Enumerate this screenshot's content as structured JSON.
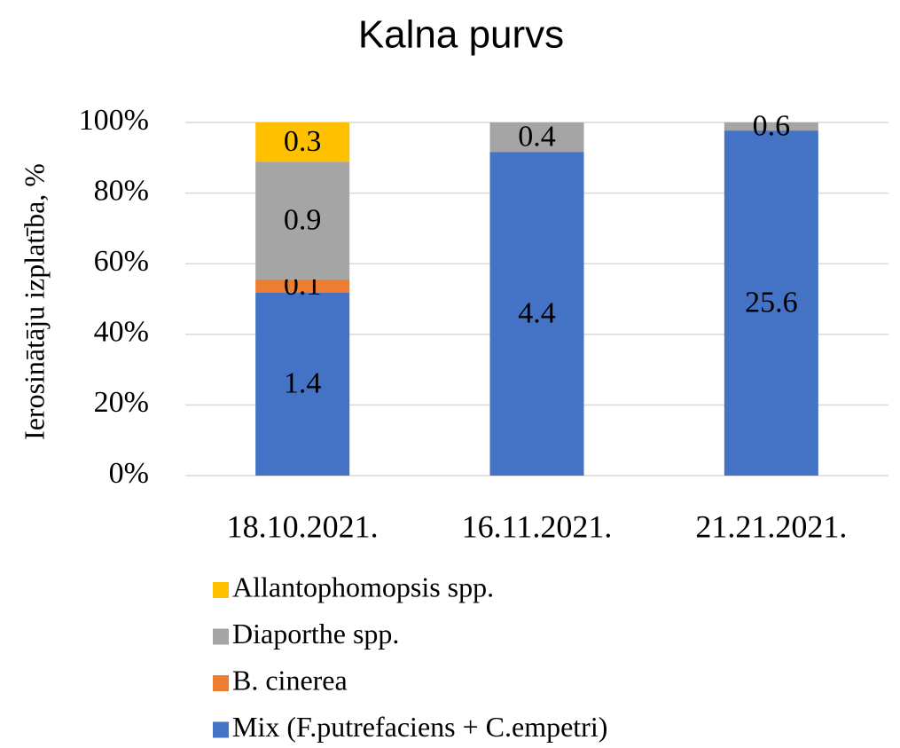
{
  "chart_data": {
    "type": "bar",
    "stacked_percent": true,
    "title": "Kalna purvs",
    "y_label": "Ierosinātāju izplatība, %",
    "categories": [
      "18.10.2021.",
      "16.11.2021.",
      "21.21.2021."
    ],
    "series": [
      {
        "name": "Mix (F.putrefaciens + C.empetri)",
        "color": "#4472c4",
        "values": [
          1.4,
          4.4,
          25.6
        ]
      },
      {
        "name": "B. cinerea",
        "color": "#ed7d31",
        "values": [
          0.1,
          null,
          null
        ]
      },
      {
        "name": "Diaporthe spp.",
        "color": "#a5a5a5",
        "values": [
          0.9,
          0.4,
          0.6
        ]
      },
      {
        "name": "Allantophomopsis spp.",
        "color": "#ffc000",
        "values": [
          0.3,
          null,
          null
        ]
      }
    ],
    "ylim": [
      0,
      100
    ],
    "yticks": [
      {
        "value": 0,
        "label": "0%"
      },
      {
        "value": 20,
        "label": "20%"
      },
      {
        "value": 40,
        "label": "40%"
      },
      {
        "value": 60,
        "label": "60%"
      },
      {
        "value": 80,
        "label": "80%"
      },
      {
        "value": 100,
        "label": "100%"
      }
    ],
    "grid": true
  }
}
